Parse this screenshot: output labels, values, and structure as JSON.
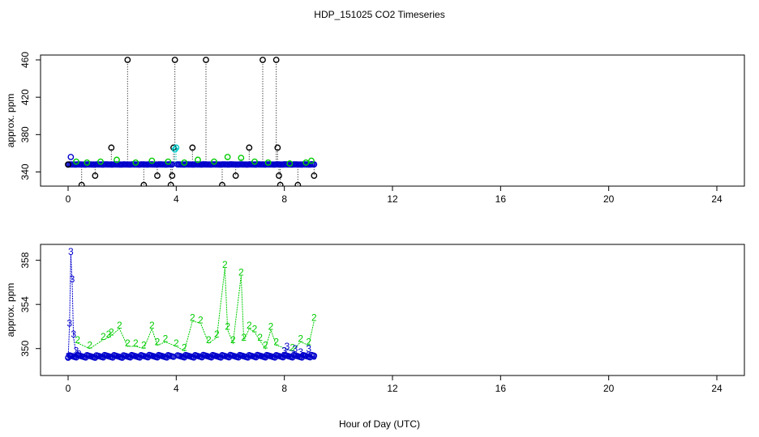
{
  "title": "HDP_151025  CO2 Timeseries",
  "xlabel": "Hour of Day (UTC)",
  "colors": {
    "black": "#000000",
    "green": "#00cc00",
    "blue": "#0000cc",
    "cyan": "#00cccc"
  },
  "chart_data": [
    {
      "type": "scatter",
      "ylabel": "approx. ppm",
      "xlim": [
        0,
        24
      ],
      "ylim": [
        330,
        460
      ],
      "xticks": [
        0,
        4,
        8,
        12,
        16,
        20,
        24
      ],
      "yticks": [
        340,
        380,
        420,
        460
      ],
      "grid": false,
      "series": [
        {
          "name": "",
          "color": "black",
          "marker": "circle",
          "x": [
            0.0,
            0.5,
            1.0,
            1.6,
            2.2,
            2.8,
            3.3,
            3.8,
            3.85,
            3.9,
            3.95,
            4.6,
            5.1,
            5.7,
            6.2,
            6.7,
            7.2,
            7.7,
            7.75,
            7.8,
            7.85,
            8.5,
            9.1
          ],
          "y": [
            348,
            326,
            336,
            366,
            460,
            326,
            336,
            326,
            336,
            366,
            460,
            366,
            460,
            326,
            336,
            366,
            460,
            460,
            366,
            336,
            326,
            326,
            336
          ]
        },
        {
          "name": "",
          "color": "green",
          "marker": "circle",
          "x": [
            0.3,
            0.7,
            1.2,
            1.8,
            2.5,
            3.1,
            3.7,
            4.3,
            4.8,
            5.4,
            5.9,
            6.4,
            6.9,
            7.4,
            8.2,
            8.8,
            9.0
          ],
          "y": [
            351,
            350,
            351,
            353,
            350,
            352,
            351,
            350,
            353,
            351,
            356,
            355,
            351,
            350,
            349,
            350,
            352
          ]
        },
        {
          "name": "",
          "color": "cyan",
          "marker": "circle",
          "x": [
            3.95,
            4.0
          ],
          "y": [
            364,
            366
          ]
        }
      ],
      "dense_series": {
        "color": "blue",
        "from": 0.0,
        "to": 9.1,
        "step": 0.05,
        "base": 348,
        "gap": [
          3.85,
          4.0
        ],
        "extra": [
          [
            0.1,
            356
          ]
        ]
      }
    },
    {
      "type": "line",
      "ylabel": "approx. ppm",
      "xlim": [
        0,
        24
      ],
      "ylim": [
        348,
        359
      ],
      "xticks": [
        0,
        4,
        8,
        12,
        16,
        20,
        24
      ],
      "yticks": [
        350,
        354,
        358
      ],
      "grid": false,
      "series": [
        {
          "name": "",
          "color": "blue",
          "marker_text": "3",
          "x": [
            0.0,
            0.05,
            0.1,
            0.15,
            0.2,
            0.3,
            0.4
          ],
          "y": [
            349,
            352,
            358.5,
            356,
            351,
            349.5,
            349.2
          ]
        },
        {
          "name": "",
          "color": "green",
          "marker_text": "2",
          "x": [
            0.35,
            0.8,
            1.3,
            1.5,
            1.6,
            1.9,
            2.2,
            2.5,
            2.8,
            3.1,
            3.3,
            3.6,
            4.0,
            4.3,
            4.6,
            4.9,
            5.2,
            5.5,
            5.8,
            5.9,
            6.1,
            6.4,
            6.5,
            6.7,
            6.9,
            7.1,
            7.3,
            7.5,
            7.7,
            8.3,
            8.6,
            8.9,
            9.1
          ],
          "y": [
            350.5,
            350,
            350.8,
            351,
            351.2,
            351.8,
            350.2,
            350.2,
            350,
            351.8,
            350.3,
            350.6,
            350.2,
            349.8,
            352.5,
            352.3,
            350.5,
            351,
            357.3,
            351.7,
            350.5,
            356.6,
            350.7,
            351.8,
            351.5,
            350.7,
            350,
            351.7,
            350.3,
            349.8,
            350.6,
            350.3,
            352.5
          ]
        },
        {
          "name": "",
          "color": "blue",
          "marker_text": "3",
          "x": [
            8.0,
            8.1,
            8.4,
            8.6,
            8.9,
            9.1
          ],
          "y": [
            349.5,
            349.9,
            349.7,
            349.4,
            349.7,
            349
          ]
        }
      ],
      "dense_series": {
        "color": "blue",
        "from": 0.0,
        "to": 9.1,
        "step": 0.05,
        "base": 349.3,
        "gap": [
          3.9,
          4.0
        ],
        "extra": []
      }
    }
  ]
}
